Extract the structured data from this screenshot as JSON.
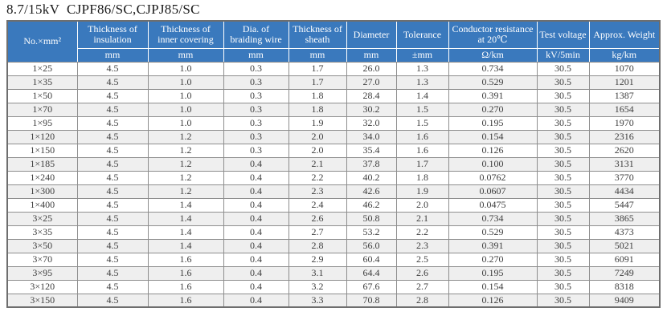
{
  "title": "8.7/15kV  CJPF86/SC,CJPJ85/SC",
  "colors": {
    "header_bg": "#3A79BD",
    "header_text": "#FFFFFF",
    "row_alt_bg": "#EFEFEF",
    "body_text": "#3D3D3D",
    "grid": "#8E8E8E",
    "outer_border": "#6E6E6E"
  },
  "table": {
    "columns": [
      {
        "label": "No.×mm²",
        "unit": ""
      },
      {
        "label": "Thickness of insulation",
        "unit": "mm"
      },
      {
        "label": "Thickness of inner covering",
        "unit": "mm"
      },
      {
        "label": "Dia. of braiding wire",
        "unit": "mm"
      },
      {
        "label": "Thickness of sheath",
        "unit": "mm"
      },
      {
        "label": "Diameter",
        "unit": "mm"
      },
      {
        "label": "Tolerance",
        "unit": "±mm"
      },
      {
        "label": "Conductor resistance at 20℃",
        "unit": "Ω/km"
      },
      {
        "label": "Test voltage",
        "unit": "kV/5min"
      },
      {
        "label": "Approx. Weight",
        "unit": "kg/km"
      }
    ],
    "rows": [
      [
        "1×25",
        "4.5",
        "1.0",
        "0.3",
        "1.7",
        "26.0",
        "1.3",
        "0.734",
        "30.5",
        "1070"
      ],
      [
        "1×35",
        "4.5",
        "1.0",
        "0.3",
        "1.7",
        "27.0",
        "1.3",
        "0.529",
        "30.5",
        "1201"
      ],
      [
        "1×50",
        "4.5",
        "1.0",
        "0.3",
        "1.8",
        "28.4",
        "1.4",
        "0.391",
        "30.5",
        "1387"
      ],
      [
        "1×70",
        "4.5",
        "1.0",
        "0.3",
        "1.8",
        "30.2",
        "1.5",
        "0.270",
        "30.5",
        "1654"
      ],
      [
        "1×95",
        "4.5",
        "1.0",
        "0.3",
        "1.9",
        "32.0",
        "1.5",
        "0.195",
        "30.5",
        "1970"
      ],
      [
        "1×120",
        "4.5",
        "1.2",
        "0.3",
        "2.0",
        "34.0",
        "1.6",
        "0.154",
        "30.5",
        "2316"
      ],
      [
        "1×150",
        "4.5",
        "1.2",
        "0.3",
        "2.0",
        "35.4",
        "1.6",
        "0.126",
        "30.5",
        "2620"
      ],
      [
        "1×185",
        "4.5",
        "1.2",
        "0.4",
        "2.1",
        "37.8",
        "1.7",
        "0.100",
        "30.5",
        "3131"
      ],
      [
        "1×240",
        "4.5",
        "1.2",
        "0.4",
        "2.2",
        "40.2",
        "1.8",
        "0.0762",
        "30.5",
        "3770"
      ],
      [
        "1×300",
        "4.5",
        "1.2",
        "0.4",
        "2.3",
        "42.6",
        "1.9",
        "0.0607",
        "30.5",
        "4434"
      ],
      [
        "1×400",
        "4.5",
        "1.4",
        "0.4",
        "2.4",
        "46.2",
        "2.0",
        "0.0475",
        "30.5",
        "5447"
      ],
      [
        "3×25",
        "4.5",
        "1.4",
        "0.4",
        "2.6",
        "50.8",
        "2.1",
        "0.734",
        "30.5",
        "3865"
      ],
      [
        "3×35",
        "4.5",
        "1.4",
        "0.4",
        "2.7",
        "53.2",
        "2.2",
        "0.529",
        "30.5",
        "4373"
      ],
      [
        "3×50",
        "4.5",
        "1.4",
        "0.4",
        "2.8",
        "56.0",
        "2.3",
        "0.391",
        "30.5",
        "5021"
      ],
      [
        "3×70",
        "4.5",
        "1.6",
        "0.4",
        "2.9",
        "60.4",
        "2.5",
        "0.270",
        "30.5",
        "6091"
      ],
      [
        "3×95",
        "4.5",
        "1.6",
        "0.4",
        "3.1",
        "64.4",
        "2.6",
        "0.195",
        "30.5",
        "7249"
      ],
      [
        "3×120",
        "4.5",
        "1.6",
        "0.4",
        "3.2",
        "67.6",
        "2.7",
        "0.154",
        "30.5",
        "8318"
      ],
      [
        "3×150",
        "4.5",
        "1.6",
        "0.4",
        "3.3",
        "70.8",
        "2.8",
        "0.126",
        "30.5",
        "9409"
      ]
    ]
  }
}
